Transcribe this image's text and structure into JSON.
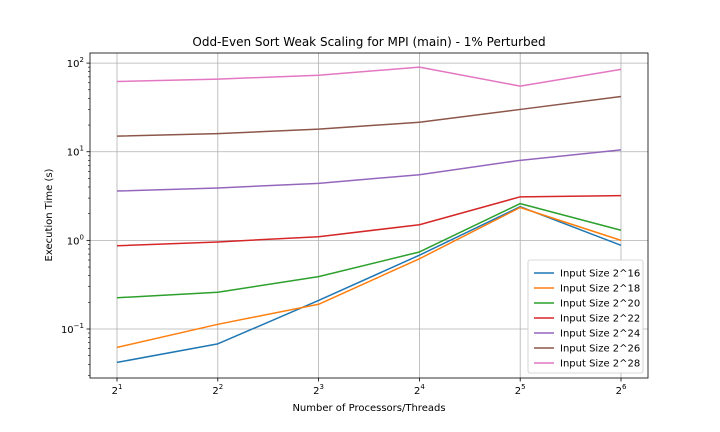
{
  "chart_data": {
    "type": "line",
    "title": "Odd-Even Sort Weak Scaling for MPI (main) - 1% Perturbed",
    "xlabel": "Number of Processors/Threads",
    "ylabel": "Execution Time (s)",
    "yscale": "log",
    "ylim": [
      0.028,
      130
    ],
    "x": [
      2,
      4,
      8,
      16,
      32,
      64
    ],
    "x_tick_labels": [
      {
        "base": "2",
        "exp": "1"
      },
      {
        "base": "2",
        "exp": "2"
      },
      {
        "base": "2",
        "exp": "3"
      },
      {
        "base": "2",
        "exp": "4"
      },
      {
        "base": "2",
        "exp": "5"
      },
      {
        "base": "2",
        "exp": "6"
      }
    ],
    "y_tick_labels": [
      {
        "value": 0.1,
        "base": "10",
        "exp": "−1"
      },
      {
        "value": 1,
        "base": "10",
        "exp": "0"
      },
      {
        "value": 10,
        "base": "10",
        "exp": "1"
      },
      {
        "value": 100,
        "base": "10",
        "exp": "2"
      }
    ],
    "grid": true,
    "legend_position": "lower-right",
    "series": [
      {
        "name": "Input Size 2^16",
        "color": "#1f77b4",
        "values": [
          0.042,
          0.068,
          0.21,
          0.68,
          2.4,
          0.88
        ]
      },
      {
        "name": "Input Size 2^18",
        "color": "#ff7f0e",
        "values": [
          0.062,
          0.113,
          0.19,
          0.62,
          2.35,
          1.0
        ]
      },
      {
        "name": "Input Size 2^20",
        "color": "#2ca02c",
        "values": [
          0.225,
          0.26,
          0.39,
          0.74,
          2.6,
          1.3
        ]
      },
      {
        "name": "Input Size 2^22",
        "color": "#d62728",
        "values": [
          0.87,
          0.96,
          1.1,
          1.5,
          3.1,
          3.2
        ]
      },
      {
        "name": "Input Size 2^24",
        "color": "#9467bd",
        "values": [
          3.6,
          3.9,
          4.4,
          5.5,
          8.0,
          10.5
        ]
      },
      {
        "name": "Input Size 2^26",
        "color": "#8c564b",
        "values": [
          15,
          16,
          18,
          21.5,
          30,
          42
        ]
      },
      {
        "name": "Input Size 2^28",
        "color": "#e377c2",
        "values": [
          62,
          66,
          73,
          90,
          55,
          85
        ]
      }
    ]
  }
}
